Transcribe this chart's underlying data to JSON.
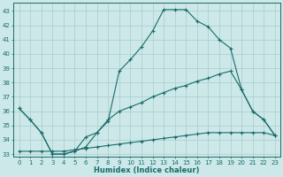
{
  "xlabel": "Humidex (Indice chaleur)",
  "xlim": [
    -0.5,
    23.5
  ],
  "ylim": [
    32.8,
    43.6
  ],
  "yticks": [
    33,
    34,
    35,
    36,
    37,
    38,
    39,
    40,
    41,
    42,
    43
  ],
  "xticks": [
    0,
    1,
    2,
    3,
    4,
    5,
    6,
    7,
    8,
    9,
    10,
    11,
    12,
    13,
    14,
    15,
    16,
    17,
    18,
    19,
    20,
    21,
    22,
    23
  ],
  "background_color": "#cce8e8",
  "grid_color": "#aacccc",
  "line_color": "#1a6b6b",
  "line1_x": [
    0,
    1,
    2,
    3,
    4,
    5,
    6,
    7,
    8,
    9,
    10,
    11,
    12,
    13,
    14,
    15,
    16,
    17,
    18,
    19,
    20,
    21,
    22,
    23
  ],
  "line1_y": [
    36.2,
    35.4,
    34.5,
    33.0,
    33.0,
    33.2,
    34.2,
    34.5,
    35.3,
    38.8,
    39.6,
    40.5,
    41.6,
    43.1,
    43.1,
    43.1,
    42.3,
    41.9,
    41.0,
    40.4,
    37.5,
    36.0,
    35.4,
    34.3
  ],
  "line2_x": [
    0,
    1,
    2,
    3,
    4,
    5,
    6,
    7,
    8,
    9,
    10,
    11,
    12,
    13,
    14,
    15,
    16,
    17,
    18,
    19,
    20,
    21,
    22,
    23
  ],
  "line2_y": [
    36.2,
    35.4,
    34.5,
    33.0,
    33.0,
    33.2,
    33.5,
    34.5,
    35.4,
    36.0,
    36.3,
    36.6,
    37.0,
    37.3,
    37.6,
    37.8,
    38.1,
    38.3,
    38.6,
    38.8,
    37.5,
    36.0,
    35.4,
    34.3
  ],
  "line3_x": [
    0,
    1,
    2,
    3,
    4,
    5,
    6,
    7,
    8,
    9,
    10,
    11,
    12,
    13,
    14,
    15,
    16,
    17,
    18,
    19,
    20,
    21,
    22,
    23
  ],
  "line3_y": [
    33.2,
    33.2,
    33.2,
    33.2,
    33.2,
    33.3,
    33.4,
    33.5,
    33.6,
    33.7,
    33.8,
    33.9,
    34.0,
    34.1,
    34.2,
    34.3,
    34.4,
    34.5,
    34.5,
    34.5,
    34.5,
    34.5,
    34.5,
    34.3
  ]
}
